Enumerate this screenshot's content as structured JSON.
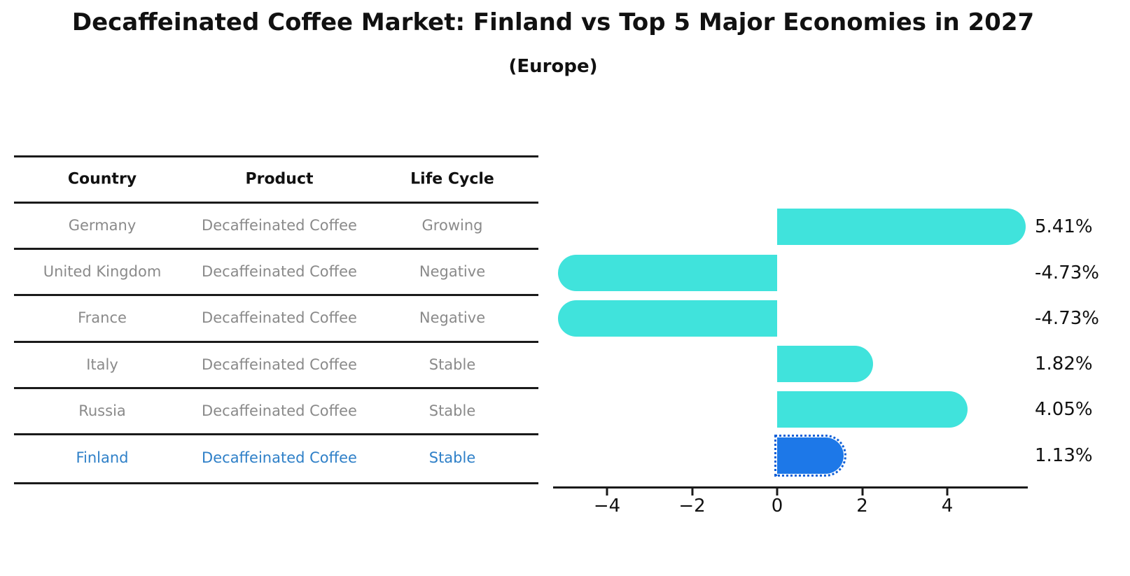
{
  "title": "Decaffeinated Coffee Market: Finland vs Top 5 Major Economies in 2027",
  "subtitle": "(Europe)",
  "table": {
    "headers": [
      "Country",
      "Product",
      "Life Cycle"
    ],
    "rows": [
      [
        "Germany",
        "Decaffeinated Coffee",
        "Growing"
      ],
      [
        "United Kingdom",
        "Decaffeinated Coffee",
        "Negative"
      ],
      [
        "France",
        "Decaffeinated Coffee",
        "Negative"
      ],
      [
        "Italy",
        "Decaffeinated Coffee",
        "Stable"
      ],
      [
        "Russia",
        "Decaffeinated Coffee",
        "Stable"
      ],
      [
        "Finland",
        "Decaffeinated Coffee",
        "Stable"
      ]
    ],
    "highlight_row": 5
  },
  "chart_data": {
    "type": "bar",
    "orientation": "horizontal",
    "categories": [
      "Germany",
      "United Kingdom",
      "France",
      "Italy",
      "Russia",
      "Finland"
    ],
    "values": [
      5.41,
      -4.73,
      -4.73,
      1.82,
      4.05,
      1.13
    ],
    "value_labels": [
      "5.41%",
      "-4.73%",
      "-4.73%",
      "1.82%",
      "4.05%",
      "1.13%"
    ],
    "x_tick_values": [
      -4,
      -2,
      0,
      2,
      4
    ],
    "x_tick_labels": [
      "−4",
      "−2",
      "0",
      "2",
      "4"
    ],
    "xlim": [
      -5.3,
      5.9
    ],
    "highlight_index": 5,
    "grid": false,
    "legend": "none"
  },
  "colors": {
    "bar": "#40E3DC",
    "highlight_bar": "#1D78E8",
    "highlight_outline": "#0F5FD7",
    "highlight_text": "#2F80C8",
    "row_text": "#8A8A8A",
    "header_text": "#111111",
    "axis": "#1A1A1A"
  }
}
